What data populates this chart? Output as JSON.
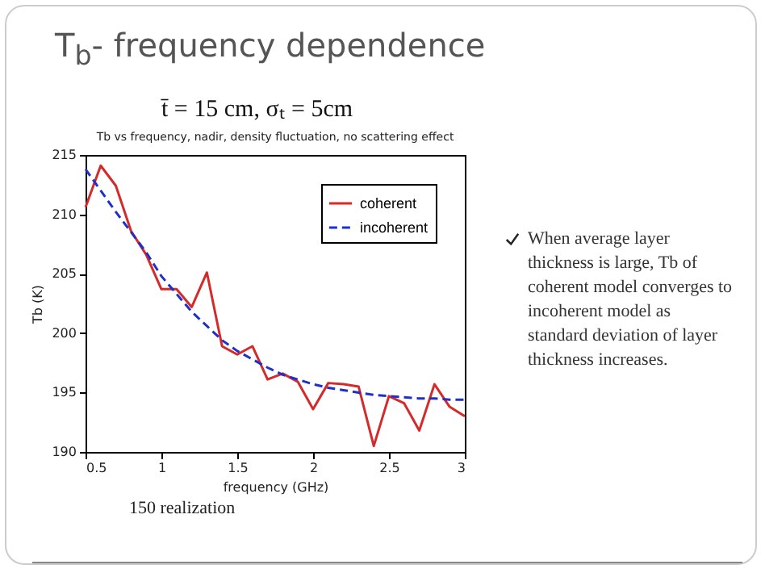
{
  "chart_data": {
    "type": "line",
    "title": "T$_{b}$- frequency dependence",
    "subtitle": "t̄ = 15 cm,  σₜ  = 5cm",
    "annotations": [
      "Tb vs frequency, nadir, density fluctuation, no scattering effect",
      "When average layer thickness is large, Tb of coherent model converges to incoherent model as standard deviation of layer thickness increases.",
      "150 realization"
    ],
    "xlabel": "frequency (GHz)",
    "ylabel": "Tb (K)",
    "x": [
      0.5,
      0.6,
      0.7,
      0.8,
      0.9,
      1.0,
      1.1,
      1.2,
      1.3,
      1.4,
      1.5,
      1.6,
      1.7,
      1.8,
      1.9,
      2.0,
      2.1,
      2.2,
      2.3,
      2.4,
      2.5,
      2.6,
      2.7,
      2.8,
      2.9,
      3.0
    ],
    "series": [
      {
        "name": "coherent",
        "color": "#d42a2a",
        "line_style": "solid",
        "values": [
          210.6,
          214.1,
          212.4,
          208.6,
          206.6,
          203.7,
          203.7,
          202.2,
          205.1,
          198.9,
          198.2,
          198.9,
          196.1,
          196.6,
          195.9,
          193.6,
          195.8,
          195.7,
          195.5,
          190.5,
          194.7,
          194.1,
          191.8,
          195.7,
          193.8,
          193.0
        ]
      },
      {
        "name": "incoherent",
        "color": "#1f2fc8",
        "line_style": "dashed",
        "values": [
          213.8,
          212.0,
          210.2,
          208.5,
          206.8,
          204.8,
          203.3,
          201.8,
          200.6,
          199.4,
          198.5,
          197.8,
          197.1,
          196.5,
          196.1,
          195.7,
          195.4,
          195.2,
          195.0,
          194.8,
          194.7,
          194.6,
          194.5,
          194.5,
          194.4,
          194.4
        ]
      }
    ],
    "xlim": [
      0.5,
      3
    ],
    "xticks": [
      0.5,
      1,
      1.5,
      2,
      2.5,
      3
    ],
    "ylim": [
      190,
      215
    ],
    "yticks": [
      190,
      195,
      200,
      205,
      210,
      215
    ],
    "legend": "top right"
  }
}
